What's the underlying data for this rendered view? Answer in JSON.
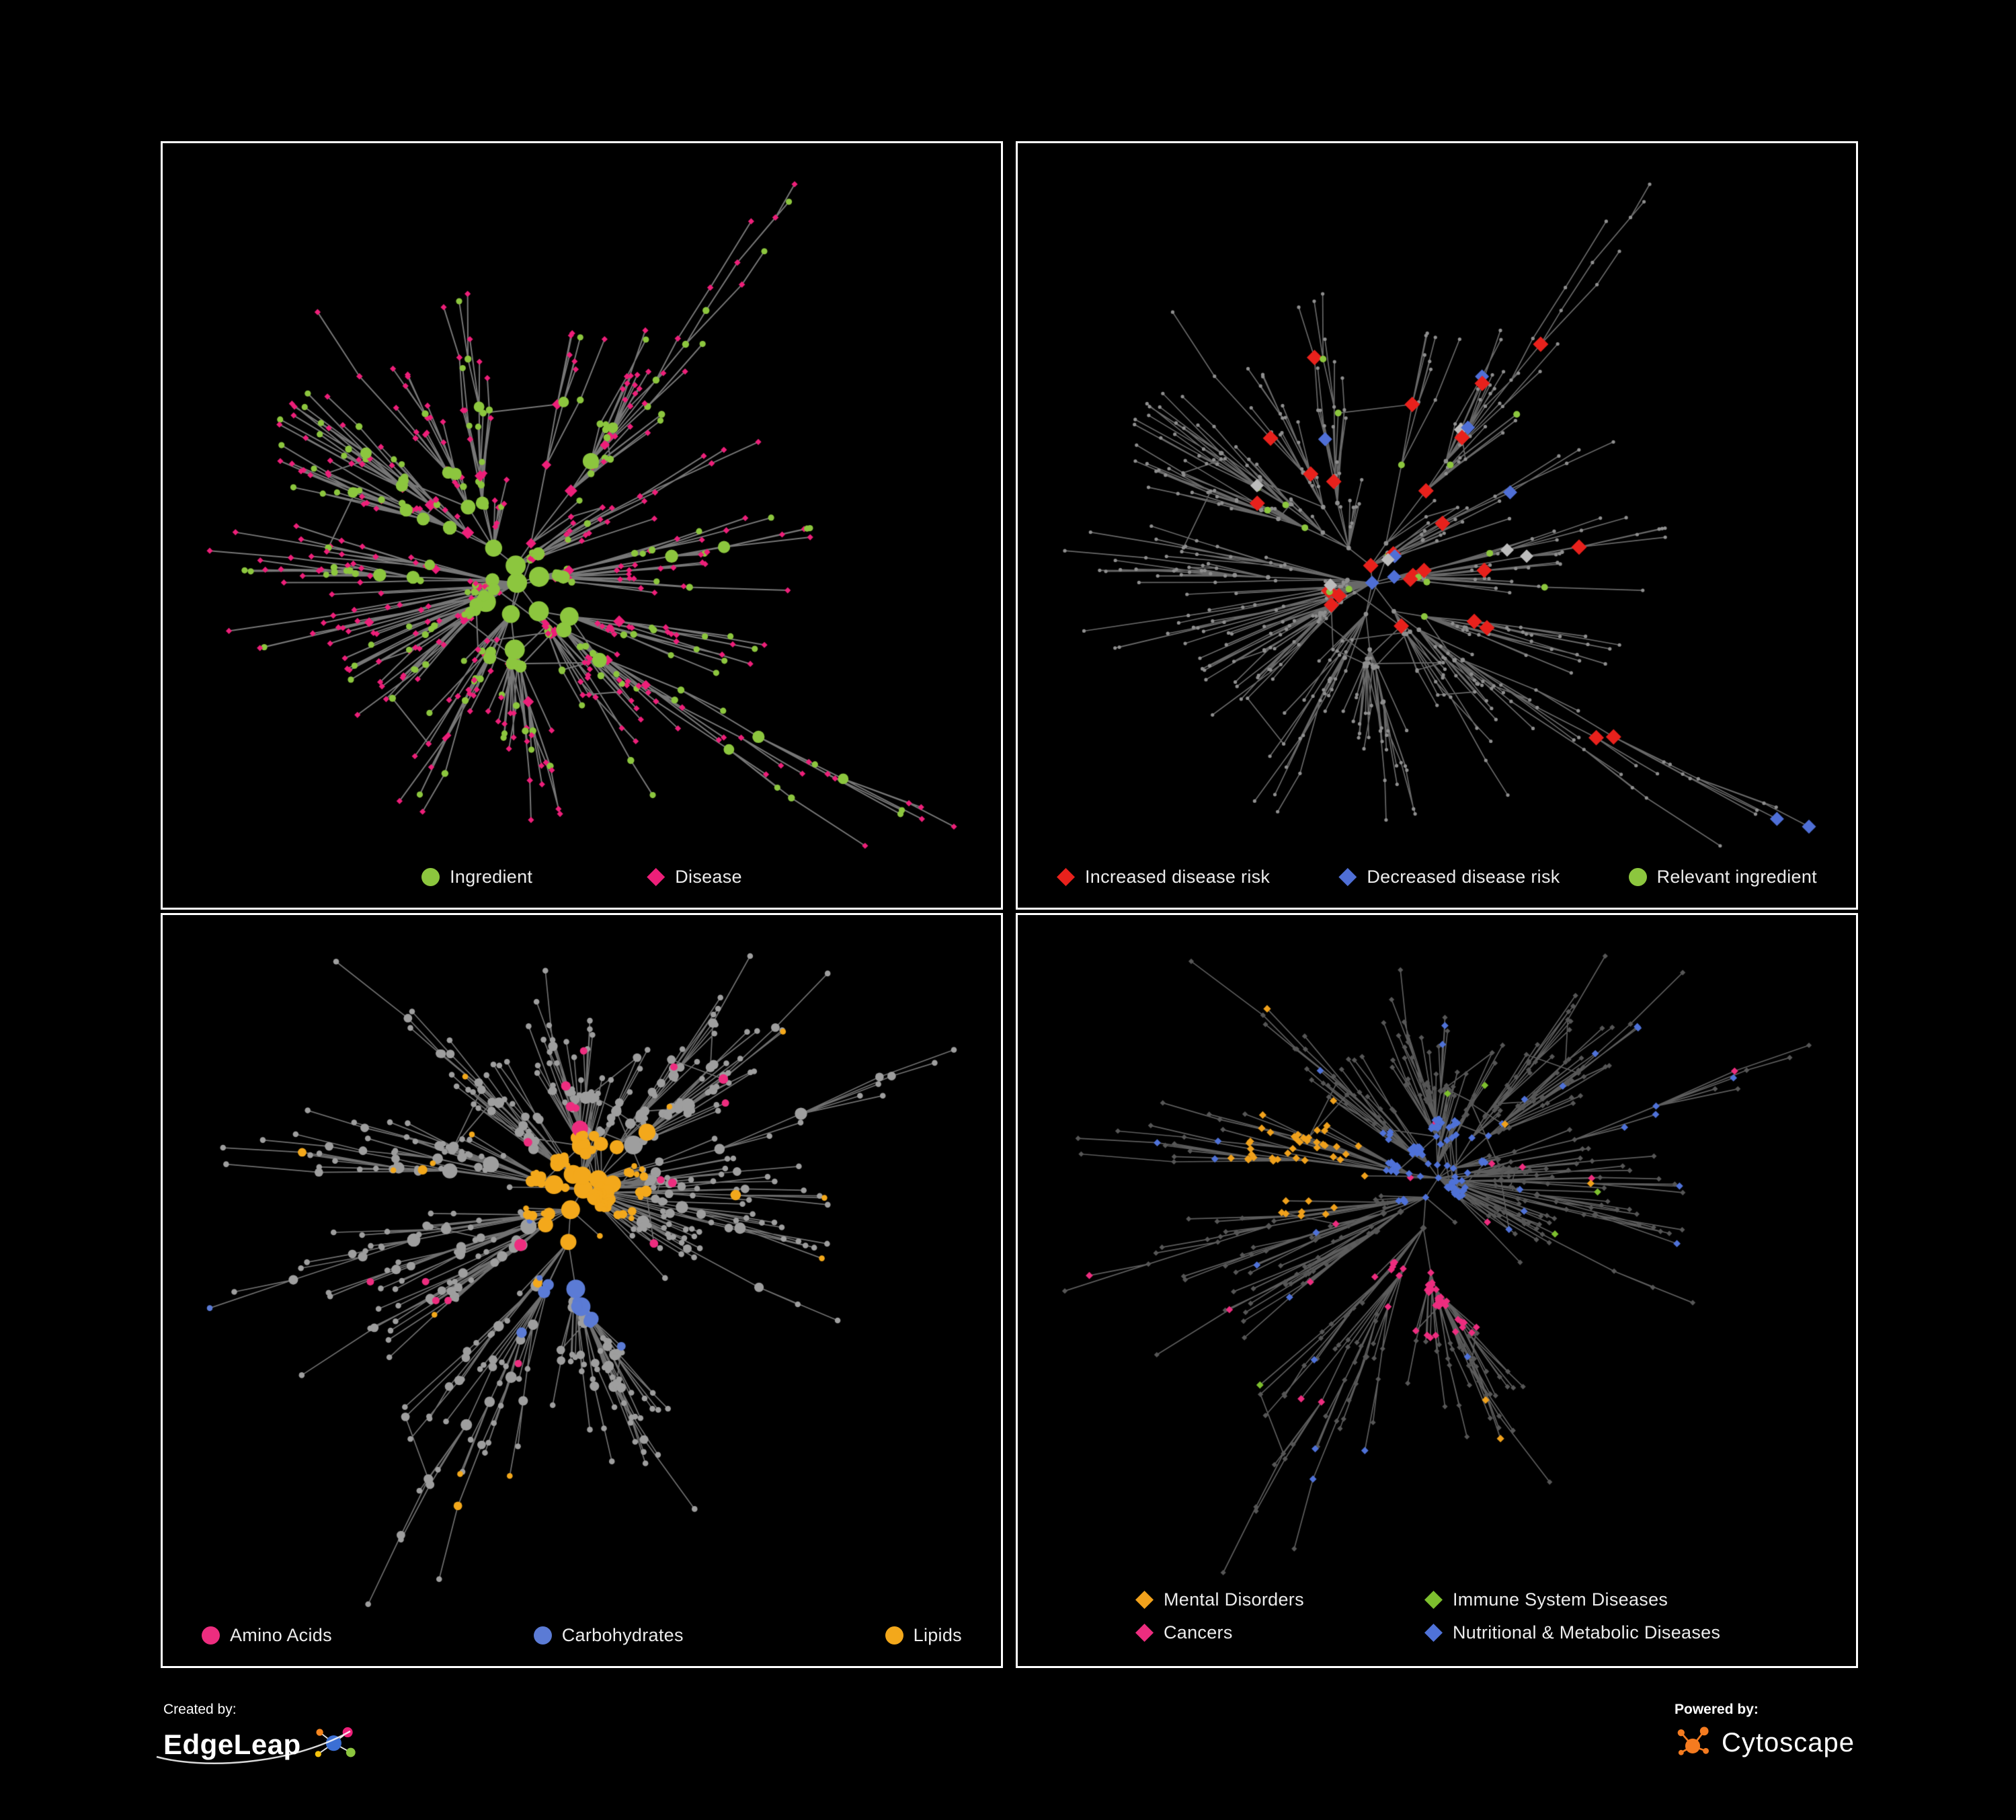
{
  "page": {
    "background": "#000000",
    "panel_border": "#ffffff"
  },
  "panels": [
    {
      "name": "ingredient-disease-network",
      "legend_layout": "center",
      "legend": [
        {
          "label": "Ingredient",
          "shape": "circle",
          "color": "#8cc63e"
        },
        {
          "label": "Disease",
          "shape": "diamond",
          "color": "#ed1f79"
        }
      ],
      "style": {
        "mode": "bipartite",
        "edge": "#8c8c8c",
        "edge_width": 2,
        "ingredient": "#8cc63e",
        "disease": "#ed1f79",
        "ingredient_ratio": 0.24
      }
    },
    {
      "name": "disease-risk-network",
      "legend_layout": "spread",
      "legend": [
        {
          "label": "Increased disease risk",
          "shape": "diamond",
          "color": "#e8211c"
        },
        {
          "label": "Decreased disease risk",
          "shape": "diamond",
          "color": "#4f6fd6"
        },
        {
          "label": "Relevant ingredient",
          "shape": "circle",
          "color": "#8cc63e"
        }
      ],
      "style": {
        "mode": "risk",
        "edge": "#7a7a7a",
        "base": "#8f8f8f",
        "increased": "#e8211c",
        "decreased": "#4f6fd6",
        "neutral": "#bcbcbc",
        "ingredient": "#8cc63e",
        "counts": {
          "increased": 24,
          "decreased": 9,
          "neutral": 6,
          "ingredient": 18
        }
      }
    },
    {
      "name": "macronutrients-network",
      "legend_layout": "spread",
      "legend": [
        {
          "label": "Amino Acids",
          "shape": "circle",
          "color": "#ed2d7f"
        },
        {
          "label": "Carbohydrates",
          "shape": "circle",
          "color": "#5b7bd5"
        },
        {
          "label": "Lipids",
          "shape": "circle",
          "color": "#f3a81b"
        }
      ],
      "style": {
        "mode": "nutrients",
        "edge": "#848484",
        "base": "#9e9e9e",
        "amino": "#ed2d7f",
        "carbs": "#5b7bd5",
        "lipids": "#f3a81b",
        "counts": {
          "amino": 19,
          "carbs": 13
        },
        "lipid_radius": 0.085,
        "lipid_scatter": 0.022,
        "carb_radius": 0.13
      }
    },
    {
      "name": "disease-classes-network",
      "legend_layout": "cols2",
      "legend": [
        {
          "label": "Mental Disorders",
          "shape": "diamond",
          "color": "#f0a11c"
        },
        {
          "label": "Immune System Diseases",
          "shape": "diamond",
          "color": "#7dbf2e"
        },
        {
          "label": "Cancers",
          "shape": "diamond",
          "color": "#ed2d7f"
        },
        {
          "label": "Nutritional & Metabolic Diseases",
          "shape": "diamond",
          "color": "#4f72d8"
        }
      ],
      "style": {
        "mode": "classes",
        "edge": "#6d6d6d",
        "base": "#565656",
        "mental": "#f0a11c",
        "immune": "#7dbf2e",
        "cancers": "#ed2d7f",
        "nutritional": "#4f72d8",
        "radii": {
          "mental": 0.105,
          "cancers": 0.085,
          "nutritional": 0.08
        },
        "scatter": {
          "mental": 0.012,
          "cancers": 0.02,
          "nutritional": 0.065,
          "immune": 0.012
        }
      }
    }
  ],
  "network": {
    "seeds": [
      1337,
      1337,
      9241,
      9241
    ],
    "node_counts": [
      620,
      620,
      660,
      660
    ],
    "extra_edges": 30
  },
  "footer": {
    "created_by": "Created by:",
    "edgeleap": "EdgeLeap",
    "powered_by": "Powered by:",
    "cytoscape": "Cytoscape",
    "colors": {
      "el_blue": "#3b6fd4",
      "el_pink": "#ed1f79",
      "el_green": "#8cc63e",
      "el_orange": "#f6861f",
      "el_yellow": "#f4c20d",
      "el_line": "#e8e8e8",
      "swoosh": "#ffffff",
      "cy_orange": "#f47b20"
    }
  }
}
